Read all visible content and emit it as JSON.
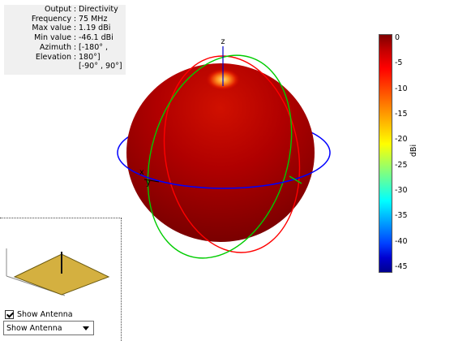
{
  "info": {
    "rows": [
      {
        "key": "Output",
        "value": "Directivity"
      },
      {
        "key": "Frequency",
        "value": "75 MHz"
      },
      {
        "key": "Max value",
        "value": "1.19 dBi"
      },
      {
        "key": "Min value",
        "value": "-46.1 dBi"
      },
      {
        "key": "Azimuth",
        "value": "[-180° ,"
      },
      {
        "key": "Elevation",
        "value": "180°]"
      }
    ],
    "elevation_range": "[-90° , 90°]"
  },
  "axis_labels": {
    "z": "z",
    "x": "x",
    "y": "y"
  },
  "colorbar": {
    "units": "dBi",
    "ticks": [
      "0",
      "-5",
      "-10",
      "-15",
      "-20",
      "-25",
      "-30",
      "-35",
      "-40",
      "-45"
    ]
  },
  "colors": {
    "sphere_dark": "#8b0000",
    "sphere_mid": "#c00000",
    "hotspot": "#ffc04a",
    "azimuth_ring": "#0000ff",
    "elevation_ring_red": "#ff0000",
    "elevation_ring_green": "#00cc00",
    "z_axis": "#0000cc",
    "antenna_plate": "#d4b040"
  },
  "controls": {
    "show_antenna_label": "Show Antenna",
    "show_antenna_checked": true,
    "dropdown_value": "Show Antenna"
  }
}
